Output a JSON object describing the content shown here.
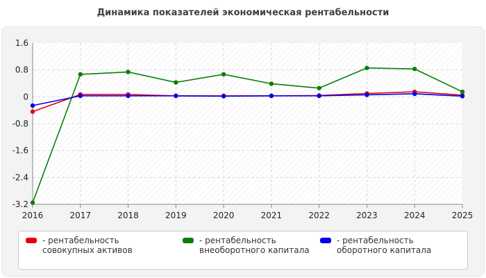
{
  "chart_data": {
    "type": "line",
    "title": "Динамика показателей экономическая рентабельности",
    "xlabel": "",
    "ylabel": "",
    "categories": [
      "2016",
      "2017",
      "2018",
      "2019",
      "2020",
      "2021",
      "2022",
      "2023",
      "2024",
      "2025"
    ],
    "y_ticks": [
      "1.6",
      "0.8",
      "0",
      "-0.8",
      "-1.6",
      "-2.4",
      "-3.2"
    ],
    "ylim": [
      -3.2,
      1.6
    ],
    "grid": true,
    "legend_position": "bottom",
    "series": [
      {
        "name": "- рентабельность совокупных активов",
        "color": "#e8000b",
        "values": [
          -0.44,
          0.07,
          0.07,
          0.03,
          0.03,
          0.03,
          0.04,
          0.1,
          0.15,
          0.05
        ]
      },
      {
        "name": "- рентабельность внеоборотного капитала",
        "color": "#0a7f0a",
        "values": [
          -3.15,
          0.67,
          0.74,
          0.43,
          0.67,
          0.39,
          0.26,
          0.86,
          0.83,
          0.15
        ]
      },
      {
        "name": "- рентабельность оборотного капитала",
        "color": "#0000ee",
        "values": [
          -0.26,
          0.03,
          0.03,
          0.03,
          0.02,
          0.03,
          0.03,
          0.06,
          0.09,
          0.02
        ]
      }
    ]
  }
}
